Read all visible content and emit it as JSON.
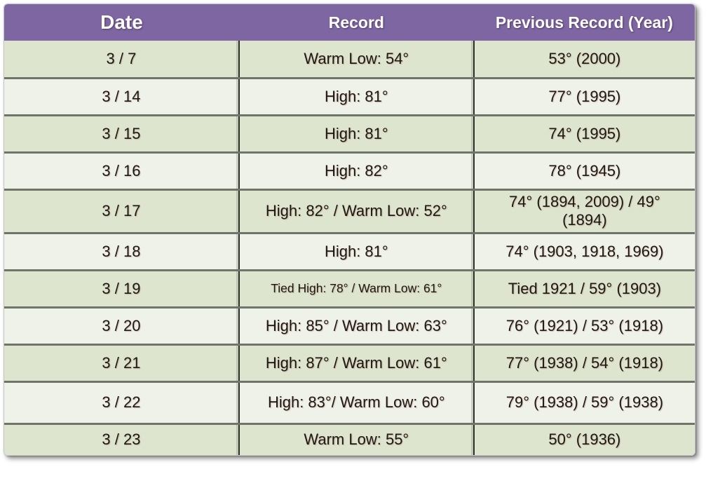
{
  "colors": {
    "header_bg": "#7E66A2",
    "header_text": "#FFFFFF",
    "row_green": "#DDE5CF",
    "row_light": "#EFF2E9",
    "row_divider": "#70756A",
    "column_border": "#2E312A",
    "body_text": "#1D1813"
  },
  "chart_data": {
    "type": "table",
    "columns": [
      "Date",
      "Record",
      "Previous Record (Year)"
    ],
    "rows": [
      [
        "3 / 7",
        "Warm Low: 54°",
        "53° (2000)"
      ],
      [
        "3 / 14",
        "High: 81°",
        "77° (1995)"
      ],
      [
        "3 / 15",
        "High: 81°",
        "74° (1995)"
      ],
      [
        "3 / 16",
        "High: 82°",
        "78° (1945)"
      ],
      [
        "3 / 17",
        "High: 82° / Warm Low: 52°",
        "74° (1894, 2009) /  49°\n(1894)"
      ],
      [
        "3 / 18",
        "High: 81°",
        "74° (1903, 1918, 1969)"
      ],
      [
        "3 / 19",
        "Tied High: 78° / Warm Low: 61°",
        "Tied 1921 / 59° (1903)"
      ],
      [
        "3 / 20",
        "High: 85° / Warm Low: 63°",
        "76° (1921) / 53° (1918)"
      ],
      [
        "3 / 21",
        "High: 87° / Warm Low: 61°",
        "77° (1938)  / 54° (1918)"
      ],
      [
        "3 / 22",
        "High: 83°/ Warm Low: 60°",
        "79° (1938) / 59° (1938)"
      ],
      [
        "3 / 23",
        "Warm Low: 55°",
        "50° (1936)"
      ]
    ]
  }
}
